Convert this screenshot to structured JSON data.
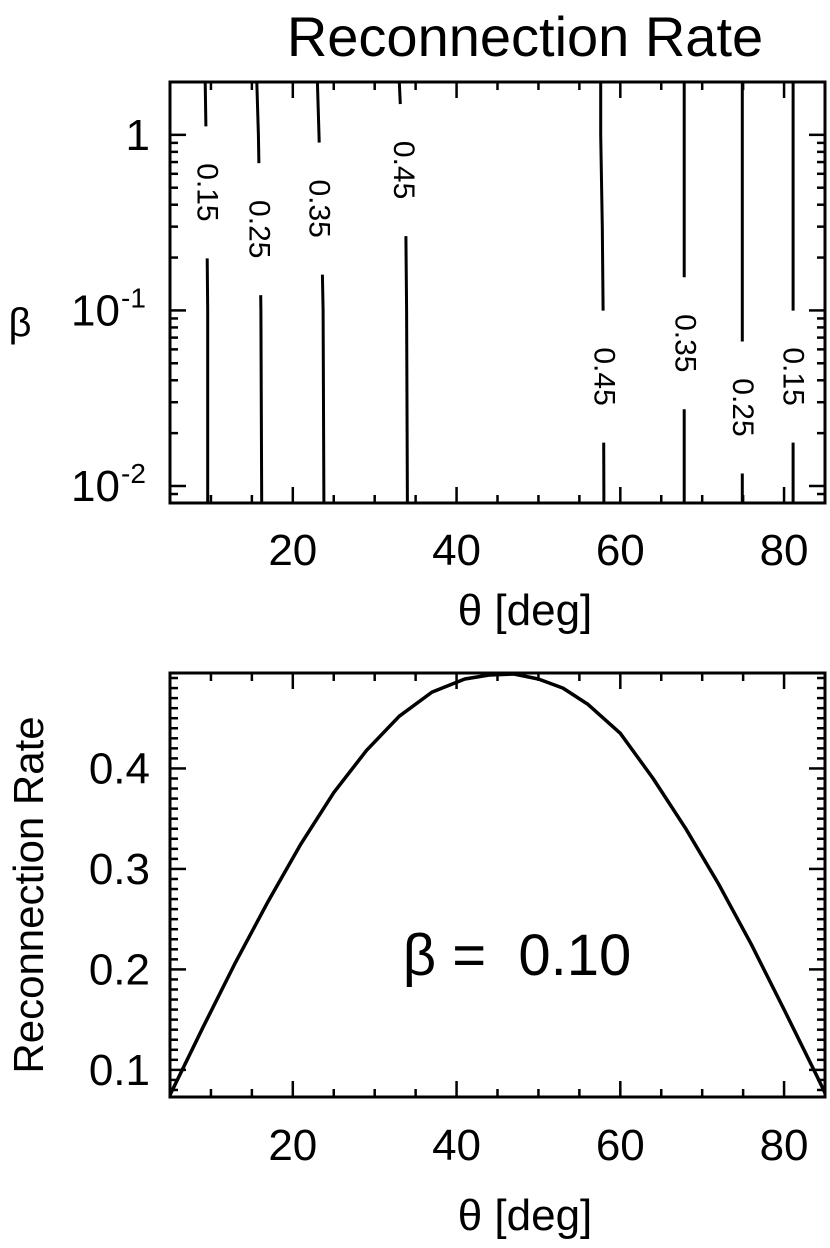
{
  "chart_data": [
    {
      "type": "contour",
      "title": "Reconnection Rate",
      "xlabel": "θ [deg]",
      "ylabel": "β",
      "xlim": [
        5,
        85
      ],
      "ylim": [
        0.008,
        2.0
      ],
      "yscale": "log",
      "x_ticks": [
        20,
        40,
        60,
        80
      ],
      "x_tick_labels": [
        "20",
        "40",
        "60",
        "80"
      ],
      "y_ticks": [
        0.01,
        0.1,
        1
      ],
      "y_tick_labels": [
        {
          "base": "10",
          "exp": "-2"
        },
        {
          "base": "10",
          "exp": "-1"
        },
        {
          "base": "1",
          "exp": ""
        }
      ],
      "contours": [
        {
          "level": 0.15,
          "label": "0.15",
          "points": [
            [
              9.3,
              2.0
            ],
            [
              9.4,
              1.0
            ],
            [
              9.5,
              0.3
            ],
            [
              9.6,
              0.1
            ],
            [
              9.6,
              0.008
            ]
          ],
          "label_at": [
            9.5,
            0.47
          ]
        },
        {
          "level": 0.25,
          "label": "0.25",
          "points": [
            [
              15.6,
              2.0
            ],
            [
              15.8,
              1.0
            ],
            [
              16.0,
              0.3
            ],
            [
              16.1,
              0.1
            ],
            [
              16.2,
              0.008
            ]
          ],
          "label_at": [
            15.9,
            0.29
          ]
        },
        {
          "level": 0.35,
          "label": "0.35",
          "points": [
            [
              23.0,
              2.0
            ],
            [
              23.2,
              1.0
            ],
            [
              23.5,
              0.3
            ],
            [
              23.7,
              0.1
            ],
            [
              23.8,
              0.008
            ]
          ],
          "label_at": [
            23.2,
            0.38
          ]
        },
        {
          "level": 0.45,
          "label": "0.45",
          "points": [
            [
              33.0,
              2.0
            ],
            [
              33.3,
              1.0
            ],
            [
              33.8,
              0.3
            ],
            [
              33.9,
              0.1
            ],
            [
              34.0,
              0.008
            ]
          ],
          "label_at": [
            33.5,
            0.63
          ]
        },
        {
          "level": 0.45,
          "label": "0.45",
          "points": [
            [
              57.6,
              2.0
            ],
            [
              57.6,
              1.0
            ],
            [
              57.8,
              0.3
            ],
            [
              57.9,
              0.1
            ],
            [
              58.0,
              0.008
            ]
          ],
          "label_at": [
            58.0,
            0.042
          ]
        },
        {
          "level": 0.35,
          "label": "0.35",
          "points": [
            [
              67.8,
              2.0
            ],
            [
              67.8,
              0.3
            ],
            [
              67.8,
              0.1
            ],
            [
              67.8,
              0.008
            ]
          ],
          "label_at": [
            67.9,
            0.065
          ]
        },
        {
          "level": 0.25,
          "label": "0.25",
          "points": [
            [
              74.9,
              2.0
            ],
            [
              74.9,
              0.3
            ],
            [
              74.9,
              0.1
            ],
            [
              74.9,
              0.008
            ]
          ],
          "label_at": [
            74.9,
            0.028
          ]
        },
        {
          "level": 0.15,
          "label": "0.15",
          "points": [
            [
              81.1,
              2.0
            ],
            [
              81.1,
              0.3
            ],
            [
              81.1,
              0.1
            ],
            [
              81.1,
              0.008
            ]
          ],
          "label_at": [
            81.1,
            0.042
          ]
        }
      ]
    },
    {
      "type": "line",
      "title": "",
      "xlabel": "θ [deg]",
      "ylabel": "Reconnection Rate",
      "xlim": [
        5,
        85
      ],
      "ylim": [
        0.073,
        0.495
      ],
      "x_ticks": [
        20,
        40,
        60,
        80
      ],
      "x_tick_labels": [
        "20",
        "40",
        "60",
        "80"
      ],
      "y_ticks": [
        0.1,
        0.2,
        0.3,
        0.4
      ],
      "y_tick_labels": [
        "0.1",
        "0.2",
        "0.3",
        "0.4"
      ],
      "annotation": "β =  0.10",
      "series": [
        {
          "x": [
            5,
            9,
            13,
            17,
            21,
            25,
            29,
            33,
            37,
            41,
            44,
            47,
            50,
            53,
            56,
            60,
            64,
            68,
            72,
            76,
            80,
            84,
            85
          ],
          "y": [
            0.075,
            0.142,
            0.207,
            0.268,
            0.325,
            0.376,
            0.418,
            0.452,
            0.476,
            0.489,
            0.493,
            0.494,
            0.489,
            0.48,
            0.464,
            0.435,
            0.39,
            0.34,
            0.285,
            0.225,
            0.16,
            0.094,
            0.077
          ]
        }
      ]
    }
  ]
}
